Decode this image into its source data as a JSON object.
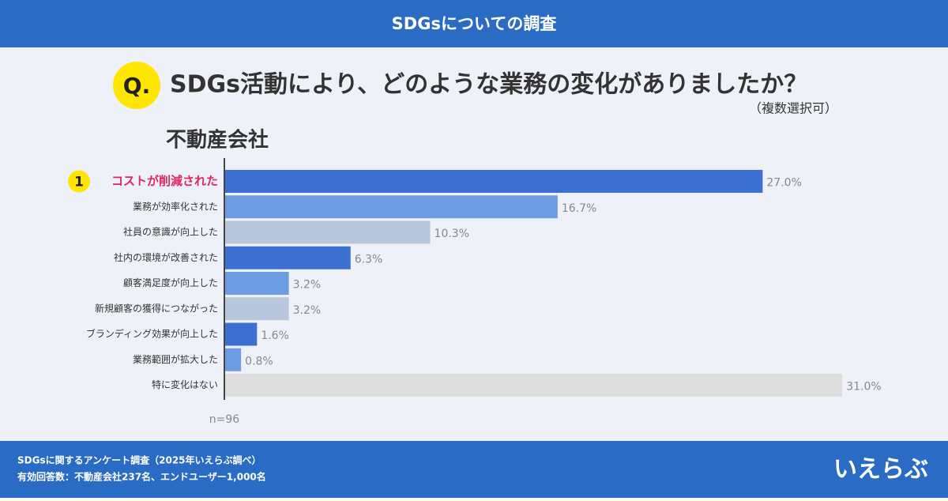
{
  "header": {
    "title": "SDGsについての調査"
  },
  "question": {
    "badge": "Q.",
    "text": "SDGs活動により、どのような業務の変化がありましたか？",
    "note": "（複数選択可）"
  },
  "chart_data": {
    "type": "bar",
    "orientation": "horizontal",
    "title": "不動産会社",
    "rank_label": "1",
    "categories": [
      "コストが削減された",
      "業務が効率化された",
      "社員の意識が向上した",
      "社内の環境が改善された",
      "顧客満足度が向上した",
      "新規顧客の獲得につながった",
      "ブランディング効果が向上した",
      "業務範囲が拡大した",
      "特に変化はない"
    ],
    "values": [
      27.0,
      16.7,
      10.3,
      6.3,
      3.2,
      3.2,
      1.6,
      0.8,
      31.0
    ],
    "value_labels": [
      "27.0%",
      "16.7%",
      "10.3%",
      "6.3%",
      "3.2%",
      "3.2%",
      "1.6%",
      "0.8%",
      "31.0%"
    ],
    "colors": [
      "#3b6fd2",
      "#6d9ce2",
      "#b9c7dc",
      "#3b6fd2",
      "#6d9ce2",
      "#b9c7dc",
      "#3b6fd2",
      "#6d9ce2",
      "#dedede"
    ],
    "highlight_index": 0,
    "highlight_color": "#e0245e",
    "note": "n=96"
  },
  "footer": {
    "lines": [
      "SDGsに関するアンケート調査（2025年いえらぶ調べ）",
      "有効回答数：不動産会社237名、エンドユーザー1,000名"
    ],
    "logo": "いえらぶ"
  }
}
